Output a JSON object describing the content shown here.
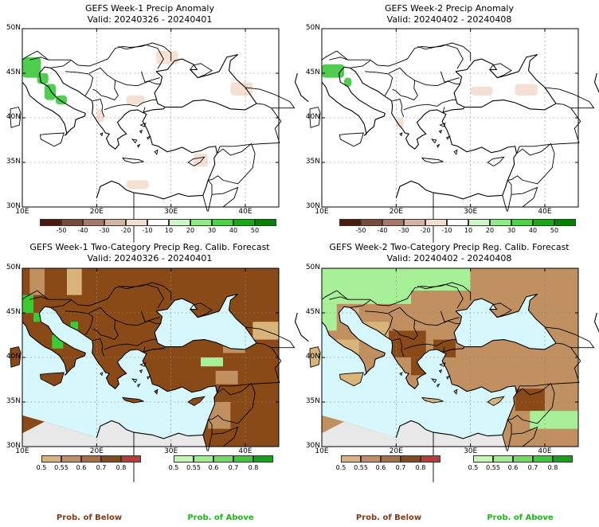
{
  "panels": [
    {
      "title": "GEFS Week-1 Precip Anomaly",
      "valid": "Valid: 20240326 - 20240401",
      "kind": "anomaly"
    },
    {
      "title": "GEFS Week-2 Precip Anomaly",
      "valid": "Valid: 20240402 - 20240408",
      "kind": "anomaly"
    },
    {
      "title": "GEFS Week-1 Two-Category Precip Reg. Calib. Forecast",
      "valid": "Valid: 20240326 - 20240401",
      "kind": "prob"
    },
    {
      "title": "GEFS Week-2 Two-Category Precip Reg. Calib. Forecast",
      "valid": "Valid: 20240402 - 20240408",
      "kind": "prob"
    }
  ],
  "axes": {
    "lat_labels": [
      "50N",
      "45N",
      "40N",
      "35N",
      "30N"
    ],
    "lon_labels": [
      "10E",
      "20E",
      "30E",
      "40E"
    ]
  },
  "anomaly_legend": {
    "ticks": [
      "-50",
      "-40",
      "-30",
      "-20",
      "-10",
      "10",
      "20",
      "30",
      "40",
      "50"
    ],
    "colors": [
      "#4a1a10",
      "#7b4a3a",
      "#a8776a",
      "#d2b3a4",
      "#f2ddd2",
      "#ffffff",
      "#cdf5c5",
      "#93e88a",
      "#4fcf4c",
      "#1ea51e",
      "#0a7d0a"
    ]
  },
  "prob_legend": {
    "below_ticks": [
      "0.5",
      "0.55",
      "0.6",
      "0.7",
      "0.8"
    ],
    "below_colors": [
      "#d8b47a",
      "#c09060",
      "#a5723d",
      "#8a4a18",
      "#b83a3a"
    ],
    "above_ticks": [
      "0.5",
      "0.55",
      "0.6",
      "0.7",
      "0.8"
    ],
    "above_colors": [
      "#c8f5b8",
      "#9ef08a",
      "#6ee05c",
      "#3bcb35",
      "#11a611"
    ],
    "below_label": "Prob. of Below",
    "above_label": "Prob. of Above"
  },
  "colors": {
    "sea": "#d6f7fb",
    "land_below": "#8a4a18",
    "land_mid": "#c09060",
    "land_light": "#d8b47a",
    "green": "#3bcb35",
    "light_green": "#a8f098",
    "outside": "#e8e8e8",
    "anomaly_green": "#2fc42f",
    "anomaly_brown": "#f3d9c9"
  }
}
